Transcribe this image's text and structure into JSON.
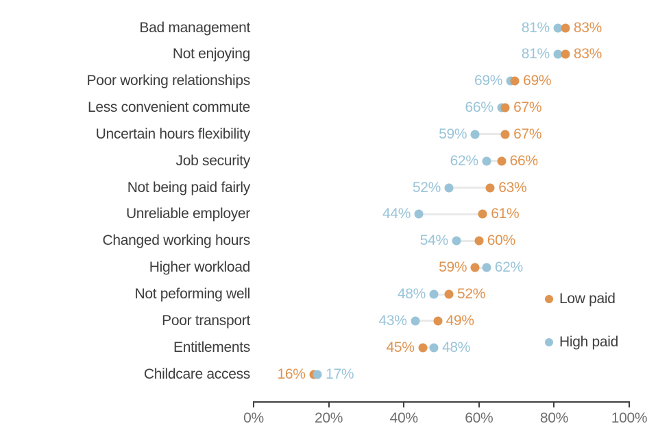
{
  "chart_data": {
    "type": "dumbbell",
    "title": "",
    "categories": [
      "Bad management",
      "Not enjoying",
      "Poor working relationships",
      "Less convenient commute",
      "Uncertain hours flexibility",
      "Job security",
      "Not being paid fairly",
      "Unreliable employer",
      "Changed working hours",
      "Higher workload",
      "Not peforming well",
      "Poor transport",
      "Entitlements",
      "Childcare access"
    ],
    "series": [
      {
        "name": "Low paid",
        "color": "#df934f",
        "values": [
          83,
          83,
          69,
          67,
          67,
          66,
          63,
          61,
          60,
          59,
          52,
          49,
          45,
          16
        ]
      },
      {
        "name": "High paid",
        "color": "#99c4d8",
        "values": [
          81,
          81,
          69,
          66,
          59,
          62,
          52,
          44,
          54,
          62,
          48,
          43,
          48,
          17
        ]
      }
    ],
    "value_suffix": "%",
    "x_axis": {
      "min": 0,
      "max": 100,
      "ticks": [
        {
          "label": "0%",
          "value": 0
        },
        {
          "label": "20%",
          "value": 20
        },
        {
          "label": "40%",
          "value": 40
        },
        {
          "label": "60%",
          "value": 60
        },
        {
          "label": "80%",
          "value": 80
        },
        {
          "label": "100%",
          "value": 100
        }
      ]
    },
    "legend": [
      {
        "label": "Low paid",
        "series": 0
      },
      {
        "label": "High paid",
        "series": 1
      }
    ],
    "styles": {
      "connector_color": "#e9e9e9",
      "category_color": "#3d3d3d",
      "axis_line_color": "#3f3f3f",
      "axis_label_color": "#6e6e6e",
      "background": "#ffffff"
    },
    "layout_hints": {
      "grid": false,
      "legend_position": "right-middle",
      "value_labels": "both-sides"
    }
  }
}
